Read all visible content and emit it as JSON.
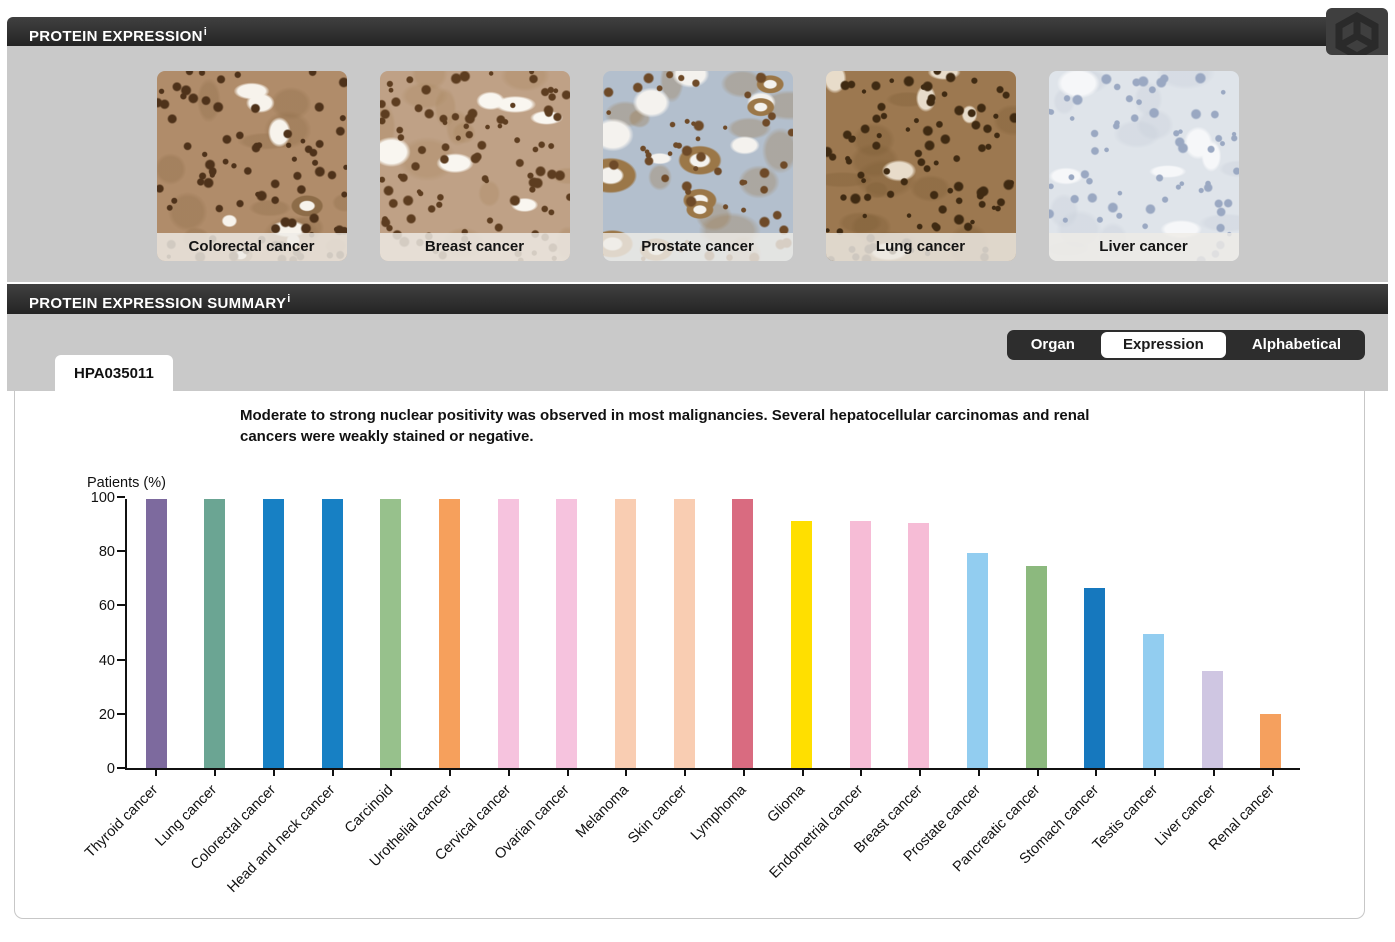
{
  "colors": {
    "header_bg": "#2d2d2d",
    "section_bg": "#c9c9c9",
    "toggle_bg": "#2d2d2d",
    "toggle_active_bg": "#ffffff",
    "axis": "#111111"
  },
  "headers": {
    "protein_expression": {
      "label": "PROTEIN EXPRESSION",
      "info_superscript": "i"
    },
    "protein_expression_summary": {
      "label": "PROTEIN EXPRESSION SUMMARY",
      "info_superscript": "i"
    }
  },
  "tissue_images": [
    {
      "label": "Colorectal cancer",
      "palette": {
        "base": "#b08c6a",
        "nuclei": "#4e321a",
        "light": "#f7f3ec",
        "accent": "#8d6c48",
        "rings": 2,
        "nuclei_count": 85
      }
    },
    {
      "label": "Breast cancer",
      "palette": {
        "base": "#bfa186",
        "nuclei": "#5d3d20",
        "light": "#f9f6f0",
        "accent": "#a9875f",
        "rings": 0,
        "nuclei_count": 95
      }
    },
    {
      "label": "Prostate cancer",
      "palette": {
        "base": "#b3bfcd",
        "nuclei": "#6e4a28",
        "light": "#f4f2ee",
        "accent": "#9b7748",
        "rings": 8,
        "nuclei_count": 55
      }
    },
    {
      "label": "Lung cancer",
      "palette": {
        "base": "#9c7850",
        "nuclei": "#3f2a12",
        "light": "#e8dcca",
        "accent": "#7c5c35",
        "rings": 0,
        "nuclei_count": 95
      }
    },
    {
      "label": "Liver cancer",
      "palette": {
        "base": "#dfe4ea",
        "nuclei": "#9aa8c2",
        "light": "#f6f7f9",
        "accent": "#c6cdd8",
        "rings": 0,
        "nuclei_count": 65
      }
    }
  ],
  "view_toggle": [
    {
      "label": "Organ",
      "active": false
    },
    {
      "label": "Expression",
      "active": true
    },
    {
      "label": "Alphabetical",
      "active": false
    }
  ],
  "antibody_tab": "HPA035011",
  "summary_text": "Moderate to strong nuclear positivity was observed in most malignancies. Several hepatocellular carcinomas and renal cancers were weakly stained or negative.",
  "chart_data": {
    "type": "bar",
    "title": "",
    "xlabel": "",
    "ylabel": "Patients (%)",
    "ylim": [
      0,
      100
    ],
    "yticks": [
      0,
      20,
      40,
      60,
      80,
      100
    ],
    "grid": false,
    "legend": "none",
    "categories": [
      "Thyroid cancer",
      "Lung cancer",
      "Colorectal cancer",
      "Head and neck cancer",
      "Carcinoid",
      "Urothelial cancer",
      "Cervical cancer",
      "Ovarian cancer",
      "Melanoma",
      "Skin cancer",
      "Lymphoma",
      "Glioma",
      "Endometrial cancer",
      "Breast cancer",
      "Prostate cancer",
      "Pancreatic cancer",
      "Stomach cancer",
      "Testis cancer",
      "Liver cancer",
      "Renal cancer"
    ],
    "values": [
      100,
      100,
      100,
      100,
      100,
      100,
      100,
      100,
      100,
      100,
      100,
      92,
      92,
      91,
      80,
      75,
      67,
      50,
      36,
      20
    ],
    "bar_colors": [
      "#7d6a9e",
      "#6ba593",
      "#1780c4",
      "#1780c4",
      "#97c18c",
      "#f6a05c",
      "#f6c3de",
      "#f6c3de",
      "#f9cdb2",
      "#f9cdb2",
      "#d96b80",
      "#ffdf00",
      "#f6bcd6",
      "#f6bcd6",
      "#92cdf0",
      "#8cb97e",
      "#1678be",
      "#92cdf0",
      "#cfc6e2",
      "#f5a05e"
    ]
  }
}
